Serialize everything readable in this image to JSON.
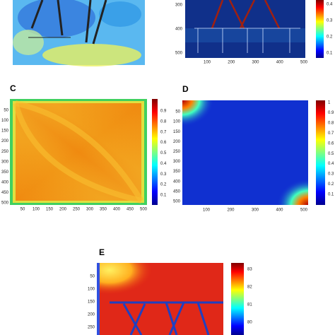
{
  "panels": [
    {
      "label": null,
      "xticks": [
        100,
        200,
        300,
        400,
        500
      ],
      "yticks": [
        300,
        400,
        500
      ],
      "colorbar_ticks": [
        0.4,
        0.3,
        0.2,
        0.1
      ]
    },
    {
      "label": "C",
      "xticks": [
        50,
        100,
        150,
        200,
        250,
        300,
        350,
        400,
        450,
        500
      ],
      "yticks": [
        50,
        100,
        150,
        200,
        250,
        300,
        350,
        400,
        450,
        500
      ],
      "colorbar_ticks": [
        0.9,
        0.8,
        0.7,
        0.6,
        0.5,
        0.4,
        0.3,
        0.2,
        0.1
      ]
    },
    {
      "label": "D",
      "xticks": [
        100,
        200,
        300,
        400,
        500
      ],
      "yticks": [
        50,
        100,
        150,
        200,
        250,
        300,
        350,
        400,
        450,
        500
      ],
      "colorbar_ticks": [
        1,
        0.9,
        0.8,
        0.7,
        0.6,
        0.5,
        0.4,
        0.3,
        0.2,
        0.1
      ]
    },
    {
      "label": "E",
      "xticks": [],
      "yticks": [
        50,
        100,
        150,
        200,
        250
      ],
      "colorbar_ticks": [
        83,
        82,
        81,
        80
      ]
    }
  ]
}
